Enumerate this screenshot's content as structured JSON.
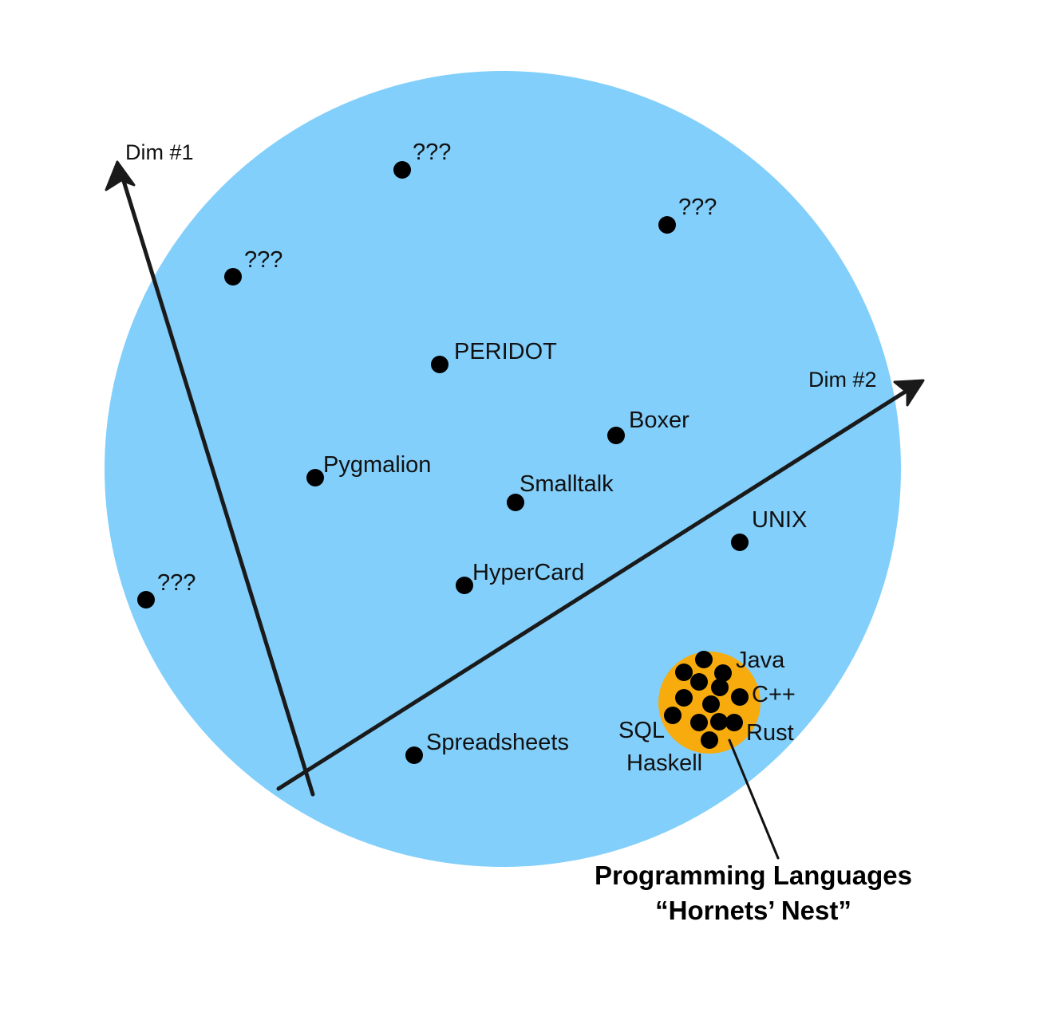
{
  "colors": {
    "space": "#82cffb",
    "nest": "#f7ab0d",
    "dot": "#000000",
    "ink": "#111111"
  },
  "axes": {
    "dim1": "Dim #1",
    "dim2": "Dim #2"
  },
  "systems": {
    "unknown": "???",
    "peridot": "PERIDOT",
    "boxer": "Boxer",
    "pygmalion": "Pygmalion",
    "smalltalk": "Smalltalk",
    "unix": "UNIX",
    "hypercard": "HyperCard",
    "spreadsheets": "Spreadsheets"
  },
  "languages": {
    "java": "Java",
    "cpp": "C++",
    "sql": "SQL",
    "rust": "Rust",
    "haskell": "Haskell"
  },
  "caption": {
    "line1": "Programming Languages",
    "line2": "“Hornets’ Nest”"
  }
}
